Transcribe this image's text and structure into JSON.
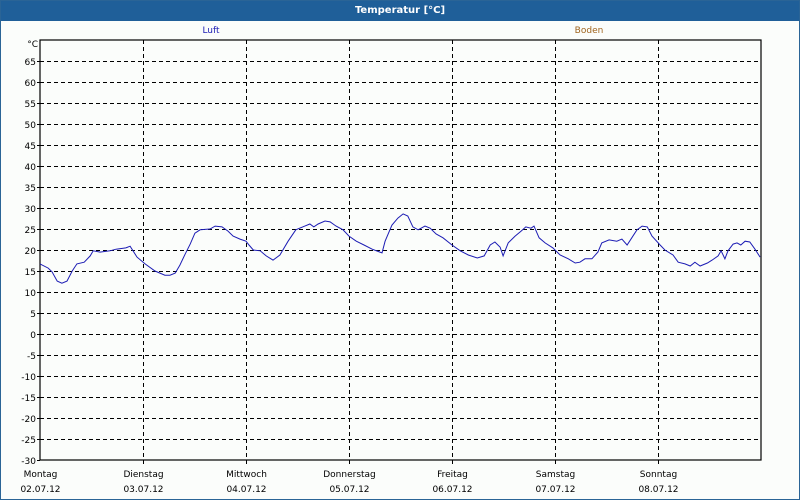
{
  "window": {
    "title": "Temperatur [°C]"
  },
  "legend": [
    {
      "label": "Luft",
      "color": "#1c1cb4"
    },
    {
      "label": "Boden",
      "color": "#a0641e"
    }
  ],
  "chart_data": {
    "type": "line",
    "title": "Temperatur [°C]",
    "ylabel": "°C",
    "xlabel": "",
    "ylim": [
      -30,
      70
    ],
    "yticks": [
      65,
      60,
      55,
      50,
      45,
      40,
      35,
      30,
      25,
      20,
      15,
      10,
      5,
      0,
      -5,
      -10,
      -15,
      -20,
      -25,
      -30
    ],
    "y_unit_label": "°C",
    "grid": true,
    "legend_position": "top",
    "x_unit": "hours since 02.07.12 00:00",
    "xlim": [
      0,
      168
    ],
    "categories": [
      {
        "day": "Montag",
        "date": "02.07.12"
      },
      {
        "day": "Dienstag",
        "date": "03.07.12"
      },
      {
        "day": "Mittwoch",
        "date": "04.07.12"
      },
      {
        "day": "Donnerstag",
        "date": "05.07.12"
      },
      {
        "day": "Freitag",
        "date": "06.07.12"
      },
      {
        "day": "Samstag",
        "date": "07.07.12"
      },
      {
        "day": "Sonntag",
        "date": "08.07.12"
      }
    ],
    "series": [
      {
        "name": "Luft",
        "color": "#1c1cb4",
        "points": [
          [
            0,
            16.7
          ],
          [
            1.9,
            15.7
          ],
          [
            2.8,
            14.8
          ],
          [
            4,
            12.6
          ],
          [
            5.1,
            12.1
          ],
          [
            6.3,
            12.6
          ],
          [
            7.5,
            15
          ],
          [
            8.6,
            16.7
          ],
          [
            10.3,
            17.1
          ],
          [
            11.7,
            18.6
          ],
          [
            12.4,
            19.8
          ],
          [
            14,
            19.5
          ],
          [
            16.3,
            19.8
          ],
          [
            17.7,
            20.2
          ],
          [
            20,
            20.5
          ],
          [
            21,
            20.9
          ],
          [
            22.6,
            18.3
          ],
          [
            24.5,
            16.7
          ],
          [
            26.8,
            15
          ],
          [
            29.1,
            14
          ],
          [
            30.3,
            14
          ],
          [
            31.5,
            14.5
          ],
          [
            32.6,
            16.4
          ],
          [
            33.8,
            19
          ],
          [
            35,
            21.4
          ],
          [
            36.1,
            24
          ],
          [
            37.3,
            24.8
          ],
          [
            39.6,
            25
          ],
          [
            40.8,
            25.7
          ],
          [
            42.4,
            25.5
          ],
          [
            43.8,
            24.5
          ],
          [
            45,
            23.3
          ],
          [
            46.6,
            22.6
          ],
          [
            48,
            22.1
          ],
          [
            48.7,
            21.2
          ],
          [
            49.7,
            20
          ],
          [
            51.3,
            19.8
          ],
          [
            52.7,
            18.6
          ],
          [
            54.3,
            17.6
          ],
          [
            55.9,
            18.8
          ],
          [
            57.8,
            22.1
          ],
          [
            59.6,
            24.8
          ],
          [
            61.7,
            25.7
          ],
          [
            62.9,
            26.2
          ],
          [
            63.8,
            25.5
          ],
          [
            64.8,
            26.2
          ],
          [
            66.4,
            26.9
          ],
          [
            67.6,
            26.7
          ],
          [
            69,
            25.7
          ],
          [
            70.6,
            24.8
          ],
          [
            72,
            23.3
          ],
          [
            73.7,
            22.1
          ],
          [
            75.5,
            21.2
          ],
          [
            77.4,
            20.2
          ],
          [
            79.2,
            19.5
          ],
          [
            79.7,
            19.3
          ],
          [
            80.4,
            22.1
          ],
          [
            82,
            25.9
          ],
          [
            83.4,
            27.6
          ],
          [
            84.6,
            28.6
          ],
          [
            85.7,
            28.1
          ],
          [
            86.9,
            25.5
          ],
          [
            88.1,
            24.8
          ],
          [
            89.7,
            25.7
          ],
          [
            90.9,
            25.2
          ],
          [
            92.3,
            23.8
          ],
          [
            93.9,
            22.9
          ],
          [
            96,
            21.2
          ],
          [
            97.9,
            19.8
          ],
          [
            99.8,
            18.8
          ],
          [
            101.9,
            18.1
          ],
          [
            103.5,
            18.6
          ],
          [
            104.9,
            21.2
          ],
          [
            106,
            21.9
          ],
          [
            107.2,
            20.7
          ],
          [
            107.9,
            18.6
          ],
          [
            109.1,
            21.7
          ],
          [
            110.7,
            23.3
          ],
          [
            112.1,
            24.5
          ],
          [
            113.2,
            25.5
          ],
          [
            114.4,
            25.2
          ],
          [
            115.1,
            25.7
          ],
          [
            116.3,
            22.9
          ],
          [
            117.7,
            21.7
          ],
          [
            119.5,
            20.5
          ],
          [
            121.2,
            18.8
          ],
          [
            123.1,
            17.9
          ],
          [
            124.7,
            16.9
          ],
          [
            125.8,
            17.1
          ],
          [
            127,
            17.9
          ],
          [
            128.6,
            17.9
          ],
          [
            130,
            19.5
          ],
          [
            130.9,
            21.7
          ],
          [
            132.6,
            22.4
          ],
          [
            134.4,
            22.1
          ],
          [
            135.6,
            22.6
          ],
          [
            136.8,
            21.2
          ],
          [
            137.9,
            22.9
          ],
          [
            139.1,
            24.8
          ],
          [
            140.3,
            25.7
          ],
          [
            141.5,
            25.5
          ],
          [
            142.6,
            23.3
          ],
          [
            144.5,
            21.2
          ],
          [
            145.6,
            20
          ],
          [
            147.5,
            18.8
          ],
          [
            148.7,
            17.1
          ],
          [
            150.3,
            16.7
          ],
          [
            151.5,
            16.2
          ],
          [
            152.6,
            17.1
          ],
          [
            153.8,
            16.2
          ],
          [
            155.5,
            16.9
          ],
          [
            156.6,
            17.6
          ],
          [
            158,
            18.6
          ],
          [
            158.7,
            19.8
          ],
          [
            159.6,
            17.9
          ],
          [
            160.3,
            19.8
          ],
          [
            161.5,
            21.4
          ],
          [
            162.4,
            21.7
          ],
          [
            163.3,
            21.2
          ],
          [
            164.3,
            22.1
          ],
          [
            165.4,
            21.9
          ],
          [
            166.6,
            20.2
          ],
          [
            167.8,
            18.3
          ]
        ]
      },
      {
        "name": "Boden",
        "color": "#a0641e",
        "points": []
      }
    ]
  }
}
